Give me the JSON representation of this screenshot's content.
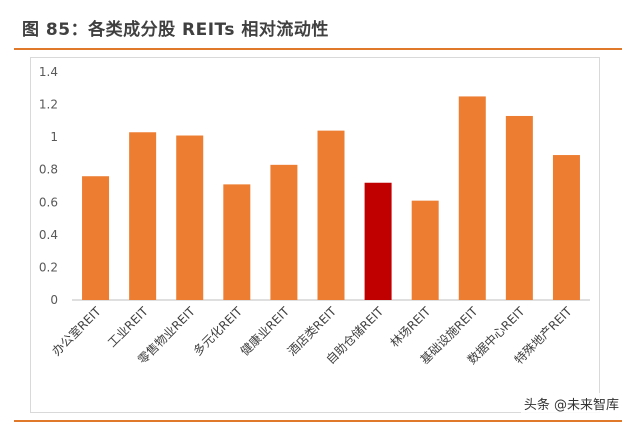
{
  "figure": {
    "title": "图 85：各类成分股 REITs 相对流动性",
    "watermark": "头条 @未来智库"
  },
  "colors": {
    "accent": "#E07A2A",
    "bar": "#ED7D31",
    "highlight_bar": "#C00000",
    "axis_text": "#595959"
  },
  "chart_data": {
    "type": "bar",
    "categories": [
      "办公室REIT",
      "工业REIT",
      "零售物业REIT",
      "多元化REIT",
      "健康业REIT",
      "酒店类REIT",
      "自助仓储REIT",
      "林场REIT",
      "基础设施REIT",
      "数据中心REIT",
      "特殊地产REIT"
    ],
    "values": [
      0.76,
      1.03,
      1.01,
      0.71,
      0.83,
      1.04,
      0.72,
      0.61,
      1.25,
      1.13,
      0.89
    ],
    "highlight_index": 6,
    "ylim": [
      0,
      1.4
    ],
    "yticks": [
      0,
      0.2,
      0.4,
      0.6,
      0.8,
      1,
      1.2,
      1.4
    ],
    "ytick_labels": [
      "0",
      "0.2",
      "0.4",
      "0.6",
      "0.8",
      "1",
      "1.2",
      "1.4"
    ],
    "grid": false,
    "legend": "none"
  }
}
